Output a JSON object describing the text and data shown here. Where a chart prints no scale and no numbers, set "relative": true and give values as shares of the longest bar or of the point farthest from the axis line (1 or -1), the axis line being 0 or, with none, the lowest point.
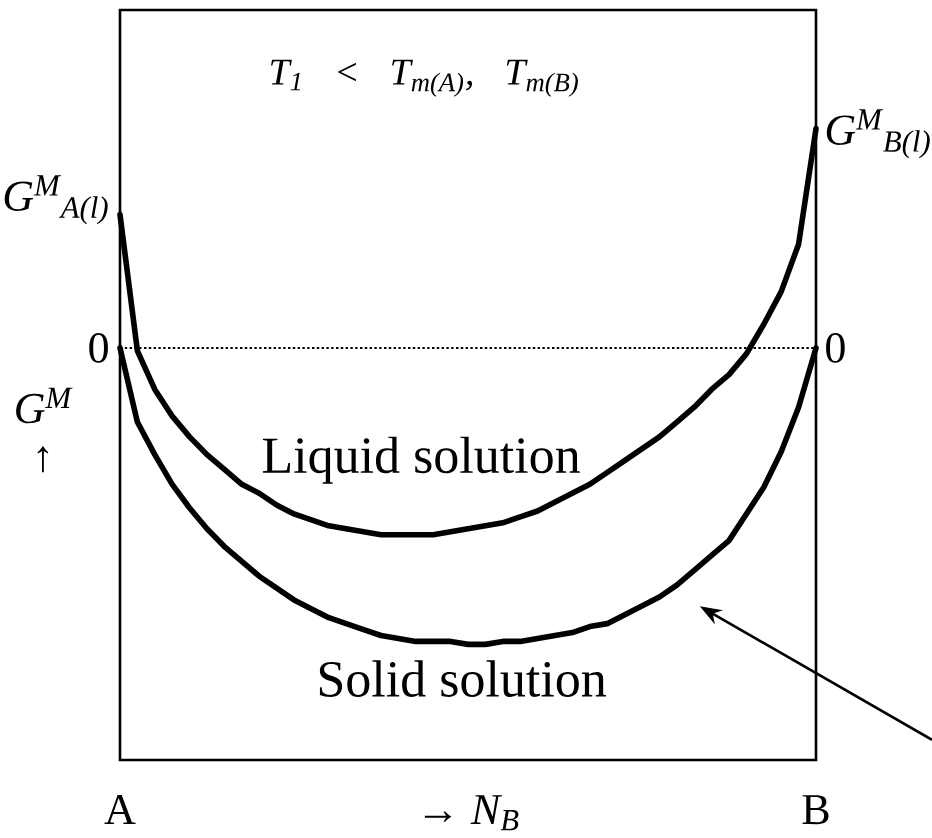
{
  "chart_data": {
    "type": "line",
    "relative": true,
    "title": "T$_{1}$ < T$_{m(A)}$, T$_{m(B)}$",
    "xlabel": "→ N$_{B}$",
    "ylabel": "G$^{M}$ ↑",
    "categories": [
      "A",
      null,
      null,
      null,
      null,
      null,
      null,
      null,
      null,
      null,
      null,
      null,
      null,
      null,
      null,
      null,
      null,
      null,
      null,
      null,
      null,
      null,
      null,
      null,
      null,
      null,
      null,
      null,
      null,
      null,
      null,
      null,
      null,
      null,
      null,
      null,
      null,
      null,
      null,
      null,
      "B"
    ],
    "series": [
      {
        "name": "Liquid solution",
        "color": "#000000",
        "values": [
          0.45,
          -0.01,
          -0.14,
          -0.23,
          -0.3,
          -0.36,
          -0.41,
          -0.46,
          -0.49,
          -0.53,
          -0.56,
          -0.58,
          -0.6,
          -0.61,
          -0.62,
          -0.63,
          -0.63,
          -0.63,
          -0.63,
          -0.62,
          -0.61,
          -0.6,
          -0.59,
          -0.57,
          -0.55,
          -0.52,
          -0.49,
          -0.46,
          -0.42,
          -0.38,
          -0.34,
          -0.3,
          -0.25,
          -0.2,
          -0.14,
          -0.09,
          -0.02,
          0.08,
          0.19,
          0.35,
          0.74
        ]
      },
      {
        "name": "Solid solution",
        "color": "#000000",
        "values": [
          0,
          -0.25,
          -0.36,
          -0.46,
          -0.54,
          -0.61,
          -0.67,
          -0.72,
          -0.77,
          -0.81,
          -0.85,
          -0.88,
          -0.91,
          -0.93,
          -0.95,
          -0.97,
          -0.98,
          -0.99,
          -0.99,
          -0.99,
          -1,
          -1,
          -0.99,
          -0.99,
          -0.98,
          -0.97,
          -0.96,
          -0.94,
          -0.93,
          -0.9,
          -0.87,
          -0.84,
          -0.8,
          -0.75,
          -0.7,
          -0.65,
          -0.56,
          -0.47,
          -0.35,
          -0.2,
          0
        ]
      }
    ],
    "annotations": [
      "0",
      "0",
      "G$^{M}$$_{A(l)}$",
      "G$^{M}$$_{B(l)}$"
    ],
    "marker": "none",
    "line_style": "solid"
  }
}
